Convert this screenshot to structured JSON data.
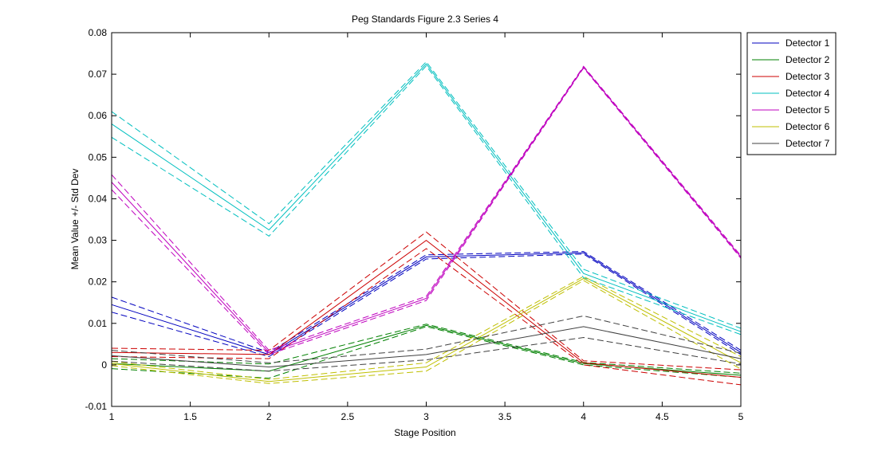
{
  "chart_data": {
    "type": "line",
    "title": "Peg Standards Figure 2.3 Series 4",
    "xlabel": "Stage Position",
    "ylabel": "Mean Value +/- Std Dev",
    "xlim": [
      1,
      5
    ],
    "ylim": [
      -0.01,
      0.08
    ],
    "x_ticks": [
      "1",
      "1.5",
      "2",
      "2.5",
      "3",
      "3.5",
      "4",
      "4.5",
      "5"
    ],
    "y_ticks": [
      "-0.01",
      "0",
      "0.01",
      "0.02",
      "0.03",
      "0.04",
      "0.05",
      "0.06",
      "0.07",
      "0.08"
    ],
    "legend_position": "top-right",
    "grid": false,
    "x": [
      1,
      2,
      3,
      4,
      5
    ],
    "series": [
      {
        "name": "Detector 1",
        "color": "#0000bf",
        "mean": [
          0.0145,
          0.0025,
          0.026,
          0.027,
          0.003
        ],
        "upper": [
          0.0163,
          0.003,
          0.0265,
          0.0273,
          0.0035
        ],
        "lower": [
          0.0127,
          0.002,
          0.0255,
          0.0267,
          0.0025
        ]
      },
      {
        "name": "Detector 2",
        "color": "#008000",
        "mean": [
          0.0003,
          -0.0015,
          0.0095,
          0.0003,
          -0.0025
        ],
        "upper": [
          0.0015,
          0.0002,
          0.0098,
          0.0006,
          -0.002
        ],
        "lower": [
          -0.0009,
          -0.0032,
          0.0092,
          0.0,
          -0.003
        ]
      },
      {
        "name": "Detector 3",
        "color": "#cc0000",
        "mean": [
          0.003,
          0.0025,
          0.03,
          0.0005,
          -0.003
        ],
        "upper": [
          0.004,
          0.0035,
          0.032,
          0.001,
          -0.0012
        ],
        "lower": [
          0.002,
          0.0015,
          0.028,
          0.0,
          -0.0048
        ]
      },
      {
        "name": "Detector 4",
        "color": "#00bfbf",
        "mean": [
          0.058,
          0.0325,
          0.0725,
          0.022,
          0.008
        ],
        "upper": [
          0.061,
          0.034,
          0.073,
          0.023,
          0.0088
        ],
        "lower": [
          0.0548,
          0.031,
          0.072,
          0.021,
          0.0073
        ]
      },
      {
        "name": "Detector 5",
        "color": "#bf00bf",
        "mean": [
          0.044,
          0.003,
          0.016,
          0.0717,
          0.026
        ],
        "upper": [
          0.0458,
          0.0035,
          0.0165,
          0.0719,
          0.0263
        ],
        "lower": [
          0.0422,
          0.0025,
          0.0155,
          0.0715,
          0.0257
        ]
      },
      {
        "name": "Detector 6",
        "color": "#bfbf00",
        "mean": [
          0.0003,
          -0.004,
          -0.0005,
          0.0208,
          0.0005
        ],
        "upper": [
          0.0008,
          -0.0035,
          0.0005,
          0.0213,
          0.002
        ],
        "lower": [
          -0.0002,
          -0.0045,
          -0.0015,
          0.0203,
          -0.001
        ]
      },
      {
        "name": "Detector 7",
        "color": "#404040",
        "mean": [
          0.0022,
          -0.0005,
          0.0025,
          0.0092,
          0.0015
        ],
        "upper": [
          0.0035,
          0.0005,
          0.0038,
          0.0118,
          0.0028
        ],
        "lower": [
          0.0009,
          -0.0015,
          0.0012,
          0.0066,
          0.0002
        ]
      }
    ]
  }
}
